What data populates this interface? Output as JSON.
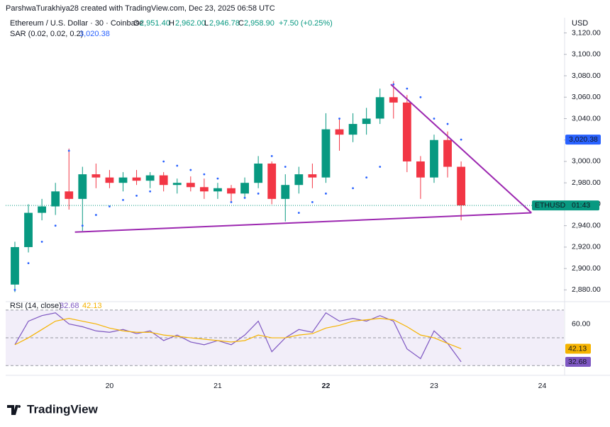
{
  "header": {
    "attribution": "ParshwaTurakhiya28 created with TradingView.com, Dec 23, 2025 06:58 UTC",
    "symbol": "Ethereum / U.S. Dollar · 30 · Coinbase",
    "o_label": "O",
    "o_value": "2,951.40",
    "h_label": "H",
    "h_value": "2,962.00",
    "l_label": "L",
    "l_value": "2,946.78",
    "c_label": "C",
    "c_value": "2,958.90",
    "change": "+7.50 (+0.25%)",
    "indicator": "SAR (0.02, 0.02, 0.2)",
    "indicator_value": "3,020.38",
    "currency": "USD"
  },
  "chart_data": [
    {
      "type": "candlestick",
      "x": [
        19.125,
        19.25,
        19.375,
        19.5,
        19.625,
        19.75,
        19.875,
        20,
        20.125,
        20.25,
        20.375,
        20.5,
        20.625,
        20.75,
        20.875,
        21,
        21.125,
        21.25,
        21.375,
        21.5,
        21.625,
        21.75,
        21.875,
        22,
        22.125,
        22.25,
        22.375,
        22.5,
        22.625,
        22.75,
        22.875,
        23,
        23.125,
        23.25
      ],
      "open": [
        2885,
        2920,
        2952,
        2958,
        2972,
        2965,
        2988,
        2985,
        2980,
        2985,
        2982,
        2987,
        2978,
        2980,
        2976,
        2972,
        2975,
        2970,
        2980,
        2998,
        2965,
        2978,
        2988,
        2985,
        3030,
        3025,
        3035,
        3040,
        3060,
        3055,
        3000,
        2985,
        3020,
        2995
      ],
      "high": [
        2925,
        2960,
        2965,
        2980,
        3012,
        2995,
        2998,
        2992,
        2990,
        2992,
        2990,
        2990,
        2984,
        2986,
        2984,
        2980,
        2978,
        2985,
        3005,
        3000,
        2988,
        2995,
        2998,
        3045,
        3040,
        3045,
        3050,
        3068,
        3075,
        3062,
        3005,
        3025,
        3028,
        3000
      ],
      "low": [
        2878,
        2915,
        2945,
        2950,
        2955,
        2935,
        2975,
        2975,
        2972,
        2978,
        2975,
        2972,
        2970,
        2972,
        2965,
        2965,
        2962,
        2965,
        2975,
        2960,
        2944,
        2970,
        2975,
        2980,
        3010,
        3018,
        3025,
        3035,
        3040,
        2990,
        2965,
        2980,
        2985,
        2945
      ],
      "close": [
        2920,
        2952,
        2958,
        2972,
        2965,
        2988,
        2985,
        2980,
        2985,
        2982,
        2987,
        2978,
        2980,
        2976,
        2972,
        2975,
        2970,
        2980,
        2998,
        2965,
        2978,
        2988,
        2985,
        3030,
        3025,
        3035,
        3040,
        3060,
        3055,
        3000,
        2985,
        3020,
        2995,
        2958.9
      ],
      "sar": [
        2880,
        2905,
        2925,
        2940,
        3010,
        2940,
        2950,
        2958,
        2964,
        2968,
        2972,
        3000,
        2996,
        2992,
        2988,
        2984,
        2962,
        2966,
        2970,
        3005,
        2995,
        2952,
        2962,
        2970,
        3040,
        2975,
        2985,
        2995,
        3072,
        3068,
        3060,
        3040,
        3035,
        3020.38
      ],
      "sar_label": "3,020.38",
      "up_color": "#089981",
      "down_color": "#f23645",
      "sar_color": "#2962ff",
      "trendlines": [
        {
          "x": [
            19.68,
            23.9
          ],
          "y": [
            2934,
            2952
          ]
        },
        {
          "x": [
            22.6,
            23.9
          ],
          "y": [
            3072,
            2952
          ]
        }
      ],
      "trend_color": "#9c27b0",
      "badge": {
        "symbol": "ETHUSD",
        "time": "01:43",
        "value": 2958.9
      },
      "xlim": [
        19.04,
        24.2
      ],
      "ylim": [
        2873,
        3121
      ],
      "xticks": [
        20,
        21,
        22,
        23,
        24
      ],
      "yticks": [
        {
          "value": 2880,
          "label": "2,880.00"
        },
        {
          "value": 2900,
          "label": "2,900.00"
        },
        {
          "value": 2920,
          "label": "2,920.00"
        },
        {
          "value": 2940,
          "label": "2,940.00"
        },
        {
          "value": 2960,
          "label": "2,960.00"
        },
        {
          "value": 2980,
          "label": "2,980.00"
        },
        {
          "value": 3000,
          "label": "3,000.00"
        },
        {
          "value": 3020,
          "label": "3,020.00"
        },
        {
          "value": 3040,
          "label": "3,040.00"
        },
        {
          "value": 3060,
          "label": "3,060.00"
        },
        {
          "value": 3080,
          "label": "3,080.00"
        },
        {
          "value": 3100,
          "label": "3,100.00"
        },
        {
          "value": 3120,
          "label": "3,120.00"
        }
      ]
    },
    {
      "type": "line",
      "title": "RSI (14, close)",
      "series": [
        {
          "name": "32.68",
          "color": "#7e57c2",
          "values": [
            45,
            62,
            66,
            68,
            60,
            58,
            55,
            54,
            56,
            53,
            55,
            48,
            52,
            47,
            45,
            48,
            45,
            52,
            62,
            40,
            50,
            56,
            54,
            68,
            62,
            64,
            62,
            66,
            62,
            42,
            35,
            55,
            46,
            32.68
          ]
        },
        {
          "name": "42.13",
          "color": "#f5b300",
          "values": [
            45,
            50,
            56,
            62,
            64,
            62,
            60,
            57,
            55,
            54,
            54,
            52,
            51,
            50,
            49,
            48,
            47,
            48,
            52,
            50,
            50,
            52,
            53,
            57,
            59,
            62,
            63,
            64,
            63,
            58,
            52,
            50,
            46,
            42.13
          ]
        }
      ],
      "levels": [
        70,
        50,
        30
      ],
      "ylim": [
        24,
        73
      ],
      "yticks": [
        {
          "value": 60,
          "label": "60.00"
        }
      ]
    }
  ],
  "footer": {
    "logo": "TradingView"
  }
}
